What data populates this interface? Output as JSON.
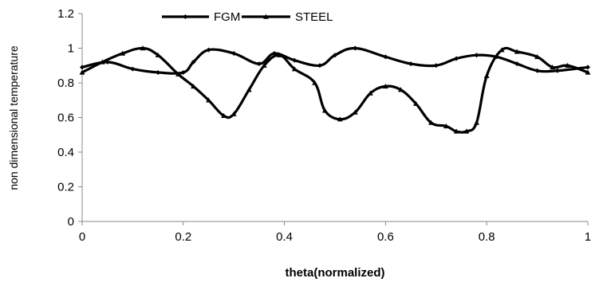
{
  "chart_data": {
    "type": "line",
    "title": "",
    "xlabel": "theta(normalized)",
    "ylabel": "non dimensional temperature",
    "xlim": [
      0,
      1
    ],
    "ylim": [
      0,
      1.2
    ],
    "xticks": [
      "0",
      "0.2",
      "0.4",
      "0.6",
      "0.8",
      "1"
    ],
    "yticks": [
      "0",
      "0.2",
      "0.4",
      "0.6",
      "0.8",
      "1",
      "1.2"
    ],
    "grid": false,
    "legend_position": "top",
    "series": [
      {
        "name": "FGM",
        "marker": "diamond",
        "color": "#000000",
        "x": [
          0,
          0.05,
          0.1,
          0.15,
          0.2,
          0.22,
          0.25,
          0.3,
          0.35,
          0.38,
          0.42,
          0.47,
          0.5,
          0.54,
          0.6,
          0.65,
          0.7,
          0.74,
          0.78,
          0.82,
          0.86,
          0.9,
          0.94,
          1.0
        ],
        "y": [
          0.89,
          0.92,
          0.88,
          0.86,
          0.86,
          0.92,
          0.99,
          0.97,
          0.91,
          0.97,
          0.93,
          0.9,
          0.96,
          1.0,
          0.95,
          0.91,
          0.9,
          0.94,
          0.96,
          0.95,
          0.91,
          0.87,
          0.87,
          0.89
        ]
      },
      {
        "name": "STEEL",
        "marker": "triangle",
        "color": "#000000",
        "x": [
          0,
          0.04,
          0.08,
          0.12,
          0.15,
          0.19,
          0.22,
          0.25,
          0.28,
          0.3,
          0.33,
          0.36,
          0.39,
          0.42,
          0.46,
          0.48,
          0.51,
          0.54,
          0.57,
          0.6,
          0.63,
          0.66,
          0.69,
          0.72,
          0.74,
          0.76,
          0.78,
          0.8,
          0.83,
          0.86,
          0.9,
          0.93,
          0.96,
          1.0
        ],
        "y": [
          0.86,
          0.92,
          0.97,
          1.0,
          0.96,
          0.85,
          0.78,
          0.7,
          0.61,
          0.62,
          0.76,
          0.9,
          0.96,
          0.88,
          0.8,
          0.64,
          0.59,
          0.63,
          0.74,
          0.78,
          0.76,
          0.68,
          0.57,
          0.55,
          0.52,
          0.52,
          0.57,
          0.84,
          0.99,
          0.98,
          0.95,
          0.89,
          0.9,
          0.86
        ]
      }
    ]
  }
}
